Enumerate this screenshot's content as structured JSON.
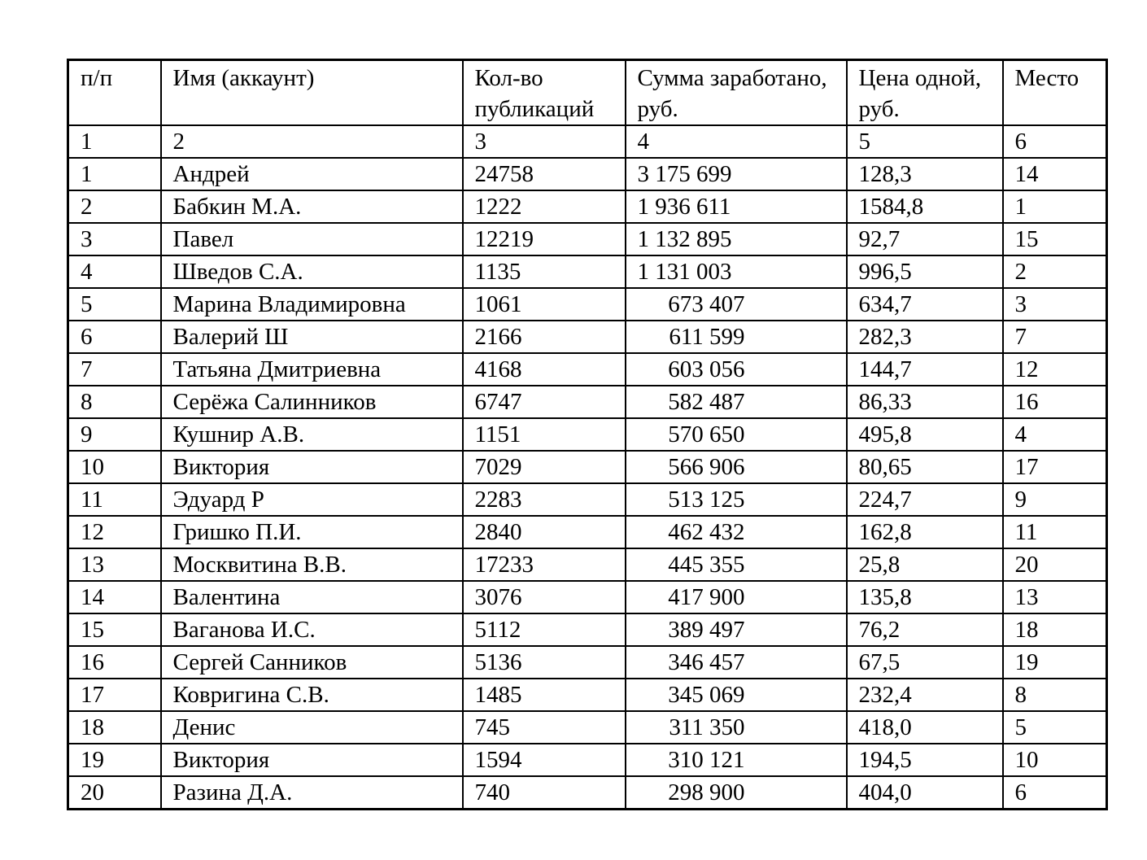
{
  "table": {
    "headers": [
      "п/п",
      "Имя (аккаунт)",
      "Кол-во публикаций",
      "Сумма заработано, руб.",
      "Цена одной, руб.",
      "Место"
    ],
    "column_numbers": [
      "1",
      "2",
      "3",
      "4",
      "5",
      "6"
    ],
    "rows": [
      [
        "1",
        "Андрей",
        "24758",
        "3 175 699",
        "128,3",
        "14"
      ],
      [
        "2",
        "Бабкин М.А.",
        "1222",
        "1 936 611",
        "1584,8",
        "1"
      ],
      [
        "3",
        "Павел",
        "12219",
        "1 132 895",
        "92,7",
        "15"
      ],
      [
        "4",
        "Шведов С.А.",
        "1135",
        "1 131 003",
        "996,5",
        "2"
      ],
      [
        "5",
        "Марина Владимировна",
        "1061",
        "673 407",
        "634,7",
        "3"
      ],
      [
        "6",
        "Валерий Ш",
        "2166",
        "611 599",
        "282,3",
        "7"
      ],
      [
        "7",
        "Татьяна Дмитриевна",
        "4168",
        "603 056",
        "144,7",
        "12"
      ],
      [
        "8",
        "Серёжа Салинников",
        "6747",
        "582 487",
        "86,33",
        "16"
      ],
      [
        "9",
        "Кушнир А.В.",
        "1151",
        "570 650",
        "495,8",
        "4"
      ],
      [
        "10",
        "Виктория",
        "7029",
        "566 906",
        "80,65",
        "17"
      ],
      [
        "11",
        "Эдуард Р",
        "2283",
        "513 125",
        "224,7",
        "9"
      ],
      [
        "12",
        "Гришко П.И.",
        "2840",
        "462 432",
        "162,8",
        "11"
      ],
      [
        "13",
        "Москвитина В.В.",
        "17233",
        "445 355",
        "25,8",
        "20"
      ],
      [
        "14",
        "Валентина",
        "3076",
        "417 900",
        "135,8",
        "13"
      ],
      [
        "15",
        "Ваганова И.С.",
        "5112",
        "389 497",
        "76,2",
        "18"
      ],
      [
        "16",
        "Сергей Санников",
        "5136",
        "346 457",
        "67,5",
        "19"
      ],
      [
        "17",
        "Ковригина С.В.",
        "1485",
        "345 069",
        "232,4",
        "8"
      ],
      [
        "18",
        "Денис",
        "745",
        "311 350",
        "418,0",
        "5"
      ],
      [
        "19",
        "Виктория",
        "1594",
        "310 121",
        "194,5",
        "10"
      ],
      [
        "20",
        "Разина Д.А.",
        "740",
        "298 900",
        "404,0",
        "6"
      ]
    ]
  }
}
